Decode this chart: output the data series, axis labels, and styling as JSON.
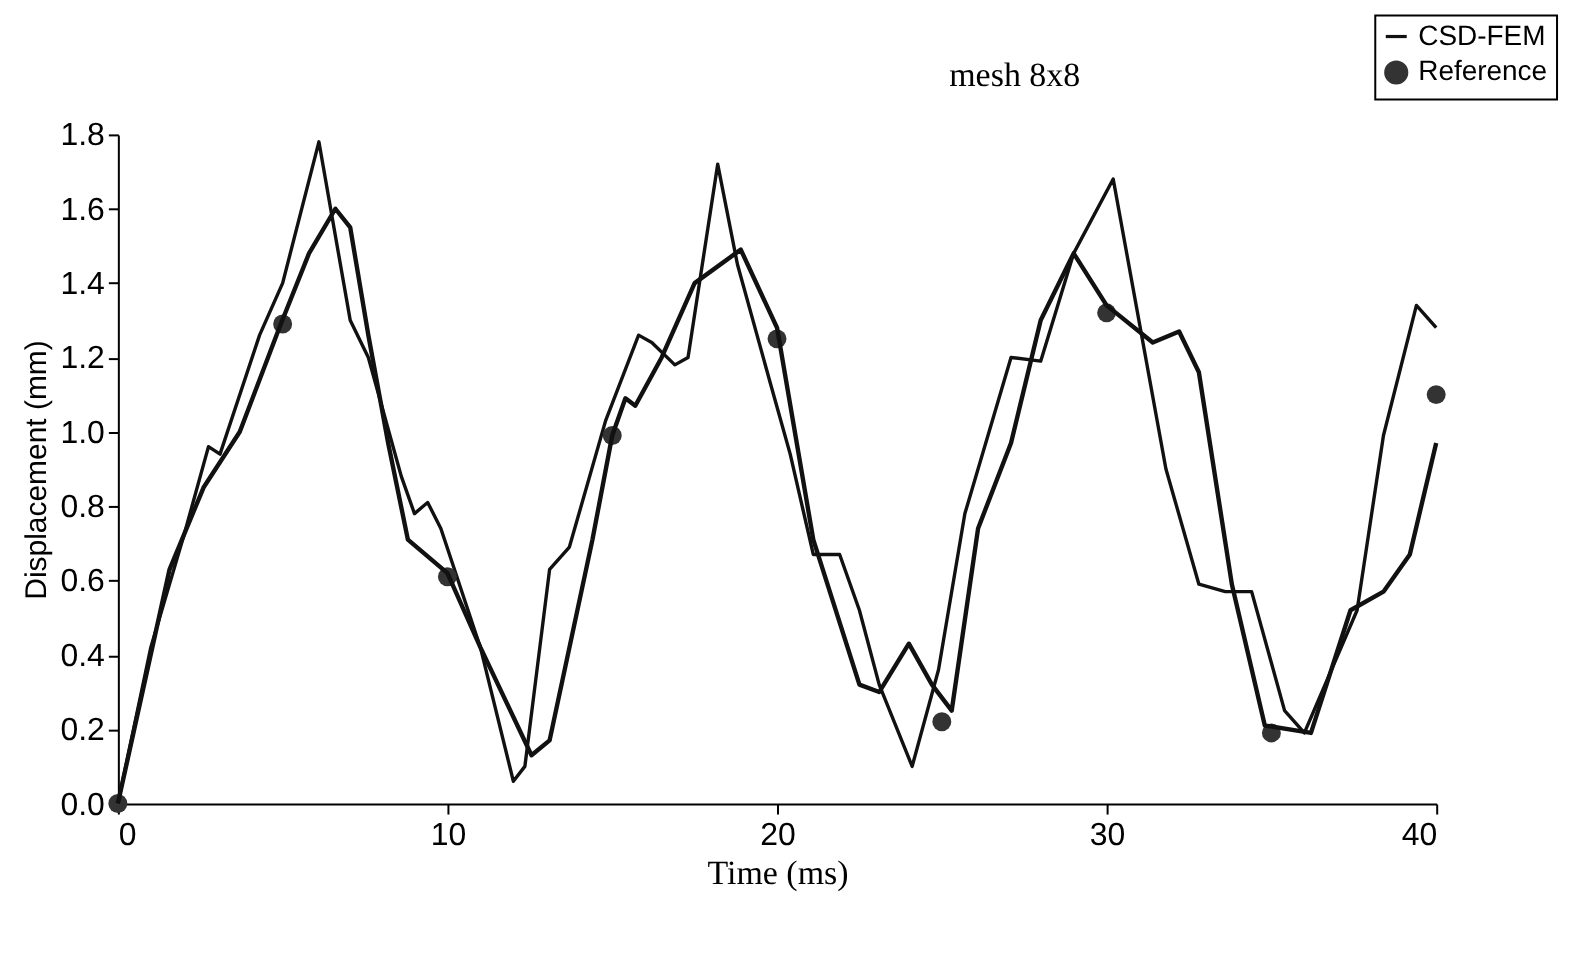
{
  "chart_data": {
    "type": "line",
    "xlabel": "Time (ms)",
    "ylabel": "Displacement (mm)",
    "annotations": [
      "mesh 8x8"
    ],
    "xlim": [
      0,
      40
    ],
    "xticks": [
      0,
      10,
      20,
      30,
      40
    ],
    "ylim": [
      0,
      1.8
    ],
    "yticks": [
      {
        "value": 0,
        "label": "0.0"
      },
      0.2,
      0.4,
      0.6,
      0.8,
      {
        "value": 1,
        "label": "1.0"
      },
      1.2,
      1.4,
      1.6,
      1.8
    ],
    "grid": false,
    "legend": "top right",
    "line_style": "solid",
    "series": [
      {
        "name": "CSD-FEM",
        "color": "#111111",
        "marker": "none",
        "x": [
          0,
          1,
          2,
          2.75,
          3.1,
          4.3,
          5.0,
          6.1,
          7.05,
          7.6,
          8.6,
          9.0,
          9.4,
          9.8,
          11.0,
          12.0,
          12.35,
          13.1,
          13.7,
          14.8,
          15.8,
          16.2,
          16.9,
          17.3,
          18.2,
          18.8,
          19.8,
          20.4,
          21.1,
          21.9,
          22.5,
          23.1,
          24.1,
          24.9,
          25.7,
          27.1,
          28.0,
          29.0,
          30.2,
          31.8,
          32.8,
          33.6,
          34.4,
          35.4,
          36.0,
          37.6,
          38.4,
          39.4,
          40
        ],
        "values": [
          0,
          0.42,
          0.72,
          0.96,
          0.94,
          1.26,
          1.4,
          1.78,
          1.3,
          1.2,
          0.88,
          0.78,
          0.81,
          0.74,
          0.42,
          0.06,
          0.1,
          0.63,
          0.69,
          1.03,
          1.26,
          1.24,
          1.18,
          1.2,
          1.72,
          1.45,
          1.13,
          0.94,
          0.67,
          0.67,
          0.52,
          0.32,
          0.1,
          0.36,
          0.78,
          1.2,
          1.19,
          1.48,
          1.68,
          0.9,
          0.59,
          0.57,
          0.57,
          0.25,
          0.19,
          0.52,
          0.99,
          1.34,
          1.28
        ]
      },
      {
        "type": "scatter",
        "name": "Reference",
        "color": "#333333",
        "marker": "circle",
        "x": [
          0,
          5,
          10,
          15,
          20,
          25,
          30,
          35,
          40
        ],
        "values": [
          0,
          1.29,
          0.61,
          0.99,
          1.25,
          0.22,
          1.32,
          0.19,
          1.1
        ]
      },
      {
        "color": "#111111",
        "marker": "none",
        "x": [
          0,
          1.57,
          2.6,
          3.7,
          4.9,
          5.8,
          6.6,
          7.05,
          7.6,
          8.2,
          8.8,
          10,
          11,
          12.55,
          13.1,
          14.4,
          15.0,
          15.4,
          15.7,
          16.5,
          17.5,
          18.9,
          20.0,
          21.1,
          22.5,
          23.1,
          24.0,
          24.7,
          25.3,
          26.1,
          27.1,
          28.0,
          29.0,
          30.0,
          31.4,
          32.2,
          32.8,
          33.8,
          34.8,
          36.2,
          37.4,
          38.4,
          39.2,
          40
        ],
        "values": [
          0,
          0.63,
          0.85,
          1.0,
          1.28,
          1.48,
          1.6,
          1.55,
          1.26,
          0.97,
          0.71,
          0.62,
          0.42,
          0.13,
          0.17,
          0.71,
          0.99,
          1.09,
          1.07,
          1.2,
          1.4,
          1.49,
          1.28,
          0.71,
          0.32,
          0.3,
          0.43,
          0.32,
          0.25,
          0.74,
          0.97,
          1.3,
          1.48,
          1.34,
          1.24,
          1.27,
          1.16,
          0.59,
          0.21,
          0.19,
          0.52,
          0.57,
          0.67,
          0.97
        ]
      }
    ]
  }
}
